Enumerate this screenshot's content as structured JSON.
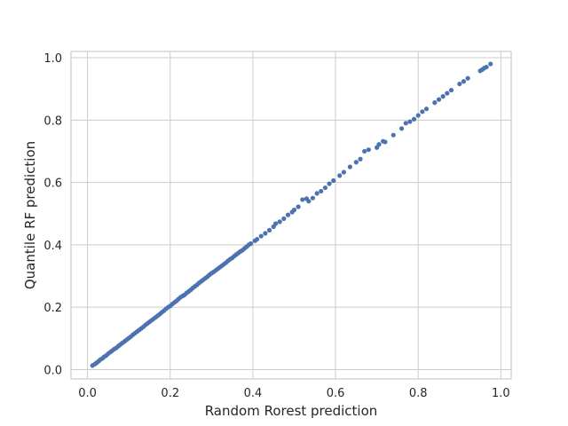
{
  "chart_data": {
    "type": "scatter",
    "title": "",
    "xlabel": "Random Rorest prediction",
    "ylabel": "Quantile RF prediction",
    "xlim": [
      -0.04,
      1.025
    ],
    "ylim": [
      -0.03,
      1.02
    ],
    "xticks": [
      0.0,
      0.2,
      0.4,
      0.6,
      0.8,
      1.0
    ],
    "yticks": [
      0.0,
      0.2,
      0.4,
      0.6,
      0.8,
      1.0
    ],
    "xtick_labels": [
      "0.0",
      "0.2",
      "0.4",
      "0.6",
      "0.8",
      "1.0"
    ],
    "ytick_labels": [
      "0.0",
      "0.2",
      "0.4",
      "0.6",
      "0.8",
      "1.0"
    ],
    "grid": true,
    "point_color": "#4c72b0",
    "series": [
      {
        "x": [
          0.012,
          0.018,
          0.022,
          0.027,
          0.031,
          0.036,
          0.04,
          0.045,
          0.05,
          0.055,
          0.06,
          0.065,
          0.07,
          0.075,
          0.08,
          0.085,
          0.09,
          0.095,
          0.1,
          0.105,
          0.11,
          0.115,
          0.12,
          0.125,
          0.13,
          0.135,
          0.14,
          0.145,
          0.15,
          0.155,
          0.16,
          0.165,
          0.17,
          0.175,
          0.18,
          0.185,
          0.19,
          0.195,
          0.2,
          0.205,
          0.21,
          0.215,
          0.22,
          0.225,
          0.23,
          0.235,
          0.24,
          0.245,
          0.25,
          0.255,
          0.26,
          0.265,
          0.27,
          0.275,
          0.28,
          0.285,
          0.29,
          0.295,
          0.3,
          0.305,
          0.31,
          0.315,
          0.32,
          0.325,
          0.33,
          0.335,
          0.34,
          0.345,
          0.35,
          0.355,
          0.36,
          0.365,
          0.37,
          0.375,
          0.38,
          0.385,
          0.39,
          0.395,
          0.405,
          0.41,
          0.42,
          0.43,
          0.44,
          0.45,
          0.455,
          0.465,
          0.475,
          0.485,
          0.495,
          0.5,
          0.51,
          0.52,
          0.53,
          0.535,
          0.545,
          0.555,
          0.565,
          0.575,
          0.585,
          0.595,
          0.61,
          0.62,
          0.635,
          0.65,
          0.66,
          0.67,
          0.68,
          0.7,
          0.705,
          0.715,
          0.72,
          0.74,
          0.76,
          0.77,
          0.78,
          0.79,
          0.8,
          0.81,
          0.82,
          0.84,
          0.85,
          0.86,
          0.87,
          0.88,
          0.9,
          0.91,
          0.92,
          0.95,
          0.955,
          0.96,
          0.965,
          0.975
        ],
        "y": [
          0.013,
          0.018,
          0.022,
          0.027,
          0.032,
          0.036,
          0.041,
          0.045,
          0.051,
          0.056,
          0.061,
          0.066,
          0.07,
          0.076,
          0.081,
          0.086,
          0.091,
          0.096,
          0.101,
          0.106,
          0.112,
          0.117,
          0.122,
          0.127,
          0.132,
          0.137,
          0.143,
          0.148,
          0.153,
          0.158,
          0.163,
          0.168,
          0.173,
          0.178,
          0.184,
          0.189,
          0.195,
          0.2,
          0.204,
          0.21,
          0.215,
          0.22,
          0.226,
          0.232,
          0.236,
          0.24,
          0.246,
          0.251,
          0.256,
          0.262,
          0.267,
          0.272,
          0.278,
          0.283,
          0.288,
          0.293,
          0.298,
          0.304,
          0.309,
          0.313,
          0.318,
          0.323,
          0.328,
          0.333,
          0.338,
          0.343,
          0.349,
          0.354,
          0.358,
          0.364,
          0.369,
          0.374,
          0.379,
          0.383,
          0.389,
          0.394,
          0.4,
          0.404,
          0.413,
          0.418,
          0.428,
          0.437,
          0.447,
          0.458,
          0.468,
          0.474,
          0.484,
          0.496,
          0.505,
          0.512,
          0.522,
          0.545,
          0.548,
          0.54,
          0.55,
          0.565,
          0.572,
          0.583,
          0.596,
          0.606,
          0.622,
          0.633,
          0.65,
          0.665,
          0.675,
          0.7,
          0.705,
          0.712,
          0.722,
          0.732,
          0.73,
          0.752,
          0.773,
          0.79,
          0.795,
          0.803,
          0.815,
          0.827,
          0.836,
          0.856,
          0.866,
          0.876,
          0.886,
          0.896,
          0.916,
          0.924,
          0.934,
          0.958,
          0.962,
          0.967,
          0.97,
          0.98
        ]
      }
    ]
  }
}
